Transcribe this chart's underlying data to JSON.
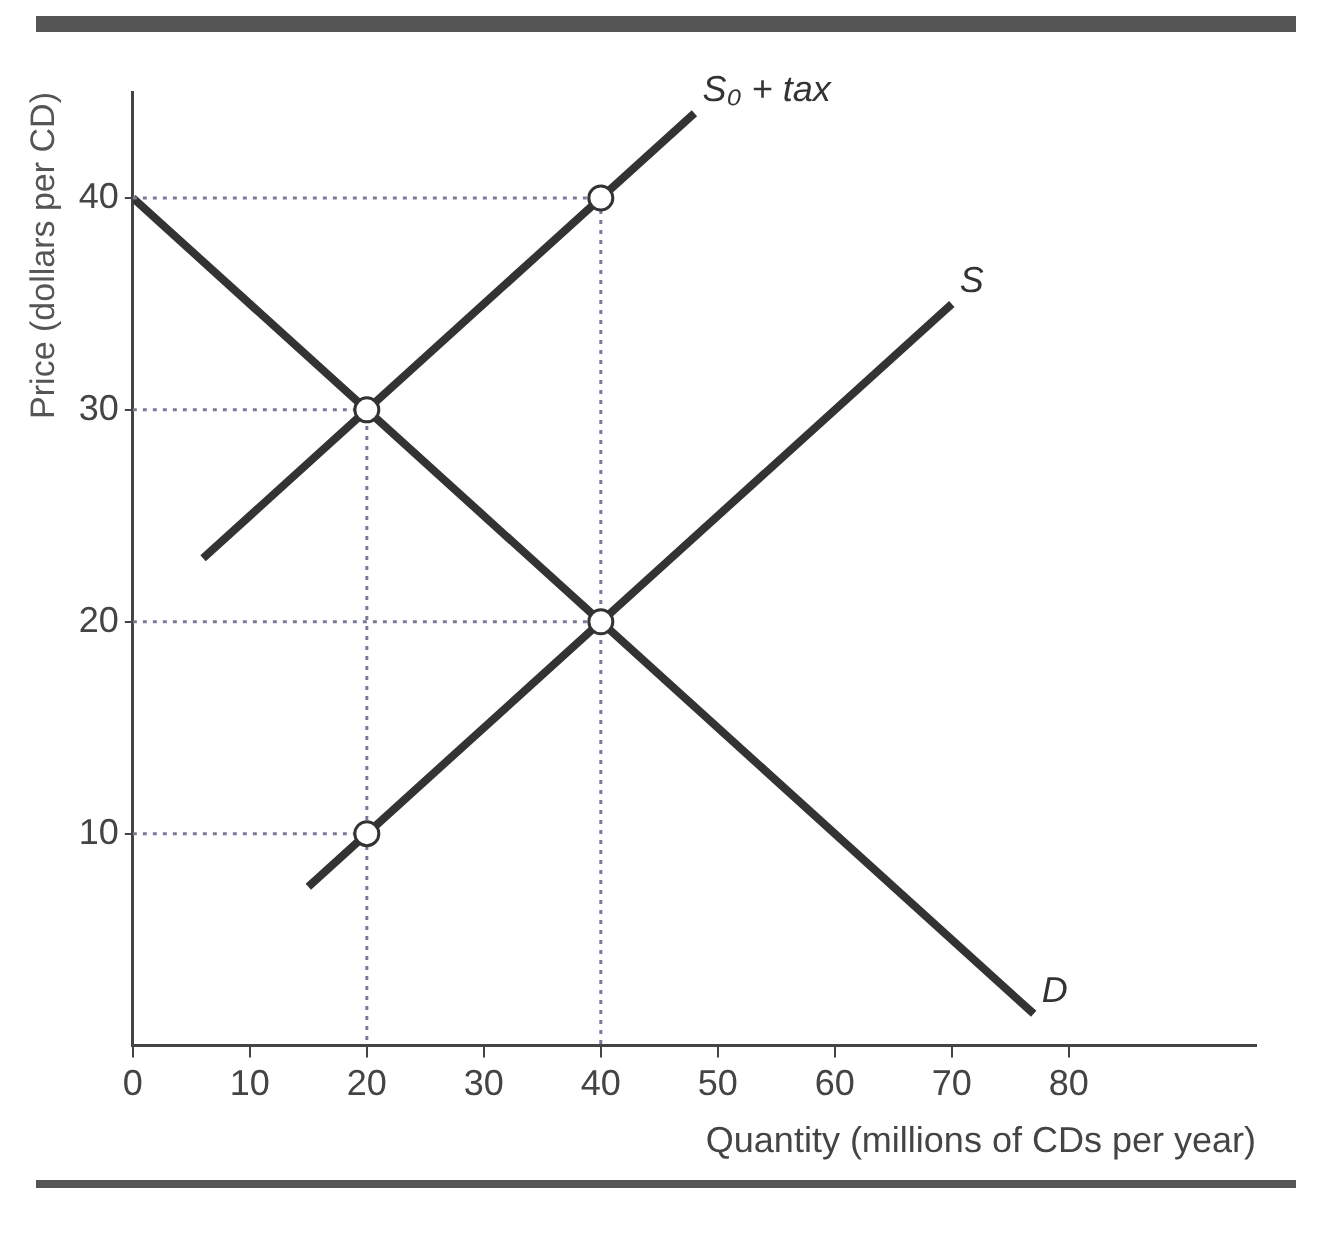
{
  "chart_data": {
    "type": "line",
    "xlabel": "Quantity (millions of CDs per year)",
    "ylabel": "Price (dollars per CD)",
    "xlim": [
      0,
      96
    ],
    "ylim": [
      0,
      45
    ],
    "xticks": [
      0,
      10,
      20,
      30,
      40,
      50,
      60,
      70,
      80
    ],
    "yticks": [
      10,
      20,
      30,
      40
    ],
    "grid": false,
    "legend": false,
    "series": [
      {
        "line_style": "dotted",
        "color": "#7a7a9a",
        "x": [
          0,
          40,
          40
        ],
        "values": [
          40,
          40,
          0
        ]
      },
      {
        "line_style": "dotted",
        "color": "#7a7a9a",
        "x": [
          0,
          20,
          20
        ],
        "values": [
          30,
          30,
          0
        ]
      },
      {
        "line_style": "dotted",
        "color": "#7a7a9a",
        "x": [
          0,
          40
        ],
        "values": [
          20,
          20
        ]
      },
      {
        "line_style": "dotted",
        "color": "#7a7a9a",
        "x": [
          0,
          20
        ],
        "values": [
          10,
          10
        ]
      },
      {
        "name": "D",
        "line_style": "solid",
        "color": "#333333",
        "x": [
          0,
          77
        ],
        "values": [
          40,
          1.5
        ]
      },
      {
        "name": "S",
        "line_style": "solid",
        "color": "#333333",
        "x": [
          15,
          70
        ],
        "values": [
          7.5,
          35
        ]
      },
      {
        "name": "S₀ + tax",
        "line_style": "solid",
        "color": "#333333",
        "x": [
          6,
          48
        ],
        "values": [
          23,
          44
        ]
      },
      {
        "type": "scatter",
        "marker": "circle",
        "color": "#333333",
        "x": [
          40,
          20,
          40,
          20
        ],
        "values": [
          40,
          30,
          20,
          10
        ]
      }
    ]
  }
}
